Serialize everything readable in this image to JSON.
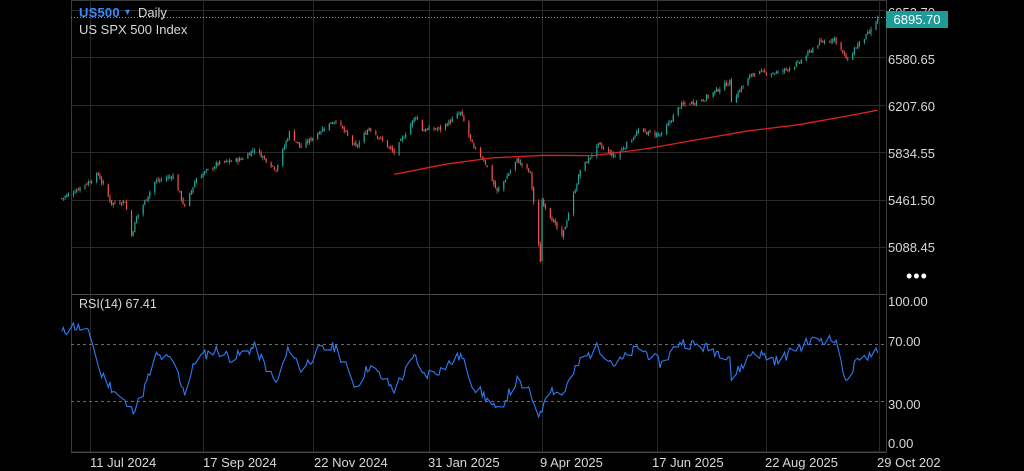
{
  "header": {
    "symbol": "US500",
    "symbol_caret": "▾",
    "interval": "Daily",
    "index_name": "US SPX 500 Index"
  },
  "last_price": "6895.70",
  "more_button": "•••",
  "colors": {
    "up_candle": "#26a69a",
    "down_candle": "#ef5350",
    "moving_average": "#e02020",
    "rsi_line": "#2f7bf5",
    "price_line": "#3fb8c0",
    "grid": "#2a2a2a"
  },
  "chart_data": [
    {
      "type": "candlestick",
      "title": "US SPX 500 Index",
      "y_ticks": [
        "6953.70",
        "6580.65",
        "6207.60",
        "5834.55",
        "5461.50",
        "5088.45"
      ],
      "x_ticks": [
        "11 Jul 2024",
        "17 Sep 2024",
        "22 Nov 2024",
        "31 Jan 2025",
        "9 Apr 2025",
        "17 Jun 2025",
        "22 Aug 2025",
        "29 Oct 202"
      ],
      "ylim": [
        4800,
        6953.7
      ],
      "last_value": 6895.7,
      "close_path": [
        [
          "2024-06-24",
          5470
        ],
        [
          "2024-07-03",
          5540
        ],
        [
          "2024-07-10",
          5600
        ],
        [
          "2024-07-16",
          5660
        ],
        [
          "2024-07-24",
          5430
        ],
        [
          "2024-08-01",
          5450
        ],
        [
          "2024-08-05",
          5180
        ],
        [
          "2024-08-08",
          5320
        ],
        [
          "2024-08-19",
          5600
        ],
        [
          "2024-08-30",
          5650
        ],
        [
          "2024-09-06",
          5400
        ],
        [
          "2024-09-13",
          5630
        ],
        [
          "2024-09-26",
          5745
        ],
        [
          "2024-10-10",
          5780
        ],
        [
          "2024-10-18",
          5860
        ],
        [
          "2024-10-31",
          5700
        ],
        [
          "2024-11-08",
          5990
        ],
        [
          "2024-11-15",
          5870
        ],
        [
          "2024-11-29",
          6030
        ],
        [
          "2024-12-06",
          6090
        ],
        [
          "2024-12-18",
          5870
        ],
        [
          "2024-12-26",
          6030
        ],
        [
          "2025-01-10",
          5830
        ],
        [
          "2025-01-23",
          6120
        ],
        [
          "2025-01-27",
          6010
        ],
        [
          "2025-02-07",
          6020
        ],
        [
          "2025-02-19",
          6145
        ],
        [
          "2025-02-27",
          5860
        ],
        [
          "2025-03-05",
          5780
        ],
        [
          "2025-03-13",
          5520
        ],
        [
          "2025-03-25",
          5775
        ],
        [
          "2025-04-02",
          5670
        ],
        [
          "2025-04-08",
          4980
        ],
        [
          "2025-04-09",
          5460
        ],
        [
          "2025-04-21",
          5160
        ],
        [
          "2025-05-02",
          5690
        ],
        [
          "2025-05-13",
          5890
        ],
        [
          "2025-05-23",
          5800
        ],
        [
          "2025-06-06",
          6000
        ],
        [
          "2025-06-20",
          5970
        ],
        [
          "2025-07-01",
          6200
        ],
        [
          "2025-07-15",
          6250
        ],
        [
          "2025-07-31",
          6390
        ],
        [
          "2025-08-01",
          6240
        ],
        [
          "2025-08-14",
          6460
        ],
        [
          "2025-08-29",
          6460
        ],
        [
          "2025-09-10",
          6530
        ],
        [
          "2025-09-22",
          6690
        ],
        [
          "2025-10-02",
          6730
        ],
        [
          "2025-10-10",
          6550
        ],
        [
          "2025-10-14",
          6650
        ],
        [
          "2025-10-24",
          6790
        ],
        [
          "2025-10-28",
          6890
        ]
      ],
      "series": [
        {
          "name": "200-day moving average",
          "points": [
            [
              "2025-01-10",
              5660
            ],
            [
              "2025-02-10",
              5740
            ],
            [
              "2025-03-10",
              5790
            ],
            [
              "2025-04-10",
              5810
            ],
            [
              "2025-05-10",
              5808
            ],
            [
              "2025-06-10",
              5860
            ],
            [
              "2025-07-10",
              5930
            ],
            [
              "2025-08-10",
              6000
            ],
            [
              "2025-09-10",
              6050
            ],
            [
              "2025-10-10",
              6120
            ],
            [
              "2025-10-28",
              6165
            ]
          ]
        }
      ]
    },
    {
      "type": "line",
      "label": "RSI(14) 67.41",
      "y_ticks": [
        "100.00",
        "70.00",
        "30.00",
        "0.00"
      ],
      "ylim": [
        0,
        100
      ],
      "reference_lines": [
        70,
        30
      ],
      "series": [
        {
          "name": "RSI(14)",
          "points": [
            [
              "2024-06-24",
              78
            ],
            [
              "2024-07-01",
              83
            ],
            [
              "2024-07-08",
              80
            ],
            [
              "2024-07-12",
              74
            ],
            [
              "2024-07-17",
              50
            ],
            [
              "2024-07-25",
              38
            ],
            [
              "2024-08-05",
              23
            ],
            [
              "2024-08-10",
              30
            ],
            [
              "2024-08-20",
              62
            ],
            [
              "2024-08-30",
              58
            ],
            [
              "2024-09-06",
              36
            ],
            [
              "2024-09-13",
              60
            ],
            [
              "2024-09-25",
              66
            ],
            [
              "2024-10-05",
              60
            ],
            [
              "2024-10-18",
              68
            ],
            [
              "2024-10-31",
              42
            ],
            [
              "2024-11-08",
              68
            ],
            [
              "2024-11-15",
              52
            ],
            [
              "2024-11-26",
              66
            ],
            [
              "2024-12-06",
              68
            ],
            [
              "2024-12-18",
              40
            ],
            [
              "2024-12-26",
              55
            ],
            [
              "2025-01-10",
              38
            ],
            [
              "2025-01-23",
              62
            ],
            [
              "2025-01-27",
              48
            ],
            [
              "2025-02-07",
              52
            ],
            [
              "2025-02-19",
              62
            ],
            [
              "2025-02-27",
              40
            ],
            [
              "2025-03-05",
              34
            ],
            [
              "2025-03-13",
              22
            ],
            [
              "2025-03-25",
              44
            ],
            [
              "2025-04-02",
              35
            ],
            [
              "2025-04-08",
              19
            ],
            [
              "2025-04-12",
              40
            ],
            [
              "2025-04-21",
              34
            ],
            [
              "2025-05-02",
              58
            ],
            [
              "2025-05-13",
              68
            ],
            [
              "2025-05-23",
              55
            ],
            [
              "2025-06-06",
              68
            ],
            [
              "2025-06-20",
              56
            ],
            [
              "2025-07-01",
              72
            ],
            [
              "2025-07-15",
              68
            ],
            [
              "2025-07-31",
              62
            ],
            [
              "2025-08-01",
              45
            ],
            [
              "2025-08-14",
              65
            ],
            [
              "2025-08-29",
              58
            ],
            [
              "2025-09-10",
              68
            ],
            [
              "2025-09-22",
              74
            ],
            [
              "2025-10-02",
              73
            ],
            [
              "2025-10-10",
              42
            ],
            [
              "2025-10-14",
              55
            ],
            [
              "2025-10-24",
              64
            ],
            [
              "2025-10-28",
              67.41
            ]
          ]
        }
      ]
    }
  ]
}
